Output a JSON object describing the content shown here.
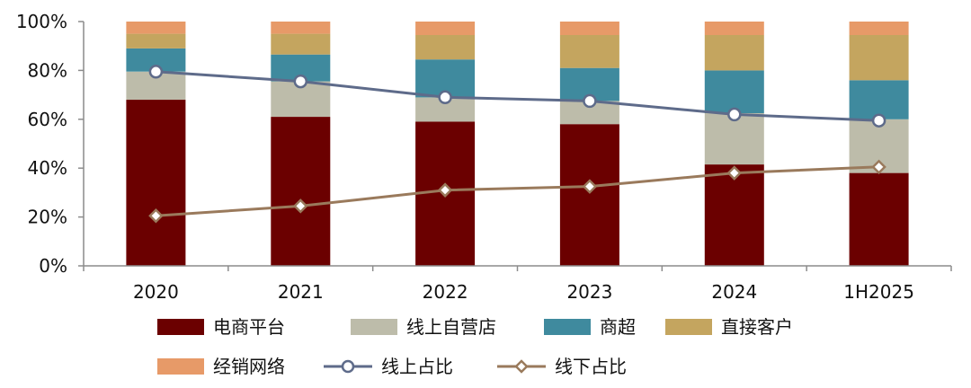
{
  "chart_data": {
    "type": "bar",
    "stacked": true,
    "categories": [
      "2020",
      "2021",
      "2022",
      "2023",
      "2024",
      "1H2025"
    ],
    "ylim": [
      0,
      100
    ],
    "yticks": [
      "0%",
      "20%",
      "40%",
      "60%",
      "80%",
      "100%"
    ],
    "grid": false,
    "legend_position": "bottom",
    "series": [
      {
        "name": "电商平台",
        "type": "bar",
        "color": "#6b0000",
        "values": [
          68,
          61,
          59,
          58,
          41.5,
          38
        ]
      },
      {
        "name": "线上自营店",
        "type": "bar",
        "color": "#bdbcaa",
        "values": [
          11.5,
          14.5,
          10,
          9.5,
          21,
          22
        ]
      },
      {
        "name": "商超",
        "type": "bar",
        "color": "#3f8a9e",
        "values": [
          9.5,
          11,
          15.5,
          13.5,
          17.5,
          16
        ]
      },
      {
        "name": "直接客户",
        "type": "bar",
        "color": "#c4a55f",
        "values": [
          6,
          8.5,
          10,
          13.5,
          14.5,
          18.5
        ]
      },
      {
        "name": "经销网络",
        "type": "bar",
        "color": "#e79a68",
        "values": [
          5,
          5,
          5.5,
          5.5,
          5.5,
          5.5
        ]
      },
      {
        "name": "线上占比",
        "type": "line",
        "color": "#5e6b8a",
        "marker": "circle",
        "values": [
          79.5,
          75.5,
          69,
          67.5,
          62,
          59.5
        ]
      },
      {
        "name": "线下占比",
        "type": "line",
        "color": "#9a7a5c",
        "marker": "diamond",
        "values": [
          20.5,
          24.5,
          31,
          32.5,
          38,
          40.5
        ]
      }
    ]
  }
}
